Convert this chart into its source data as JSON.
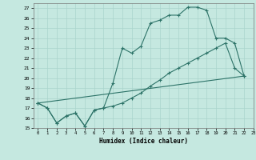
{
  "xlabel": "Humidex (Indice chaleur)",
  "xlim": [
    -0.5,
    23
  ],
  "ylim": [
    15,
    27.5
  ],
  "yticks": [
    15,
    16,
    17,
    18,
    19,
    20,
    21,
    22,
    23,
    24,
    25,
    26,
    27
  ],
  "xticks": [
    0,
    1,
    2,
    3,
    4,
    5,
    6,
    7,
    8,
    9,
    10,
    11,
    12,
    13,
    14,
    15,
    16,
    17,
    18,
    19,
    20,
    21,
    22,
    23
  ],
  "bg_color": "#c5e8e0",
  "line_color": "#2d7368",
  "grid_color": "#aad4cc",
  "line1_x": [
    0,
    1,
    2,
    3,
    4,
    5,
    6,
    7,
    8,
    9,
    10,
    11,
    12,
    13,
    14,
    15,
    16,
    17,
    18,
    19,
    20,
    21,
    22
  ],
  "line1_y": [
    17.5,
    17.0,
    15.5,
    16.2,
    16.5,
    15.2,
    16.8,
    17.0,
    19.5,
    23.0,
    22.5,
    23.2,
    25.5,
    25.8,
    26.3,
    26.3,
    27.1,
    27.1,
    26.8,
    24.0,
    24.0,
    23.5,
    20.2
  ],
  "line2_x": [
    0,
    1,
    2,
    3,
    4,
    5,
    6,
    7,
    8,
    9,
    10,
    11,
    12,
    13,
    14,
    15,
    16,
    17,
    18,
    19,
    20,
    21,
    22
  ],
  "line2_y": [
    17.5,
    17.0,
    15.5,
    16.2,
    16.5,
    15.2,
    16.8,
    17.0,
    17.2,
    17.5,
    18.0,
    18.5,
    19.2,
    19.8,
    20.5,
    21.0,
    21.5,
    22.0,
    22.5,
    23.0,
    23.5,
    21.0,
    20.2
  ],
  "line3_x": [
    0,
    22
  ],
  "line3_y": [
    17.5,
    20.2
  ]
}
